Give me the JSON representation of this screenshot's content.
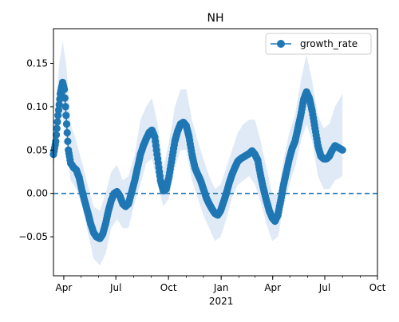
{
  "chart_data": {
    "type": "line",
    "title": "NH",
    "xlabel": "",
    "ylabel": "",
    "x_range": [
      "2020-03-14",
      "2021-10-01"
    ],
    "ylim": [
      -0.095,
      0.19
    ],
    "grid": false,
    "legend_placement": "top-right",
    "y_ticks": [
      -0.05,
      0.0,
      0.05,
      0.1,
      0.15
    ],
    "y_tick_labels": [
      "−0.05",
      "0.00",
      "0.05",
      "0.10",
      "0.15"
    ],
    "x_ticks": [
      {
        "date": "2020-04-01",
        "label": "Apr",
        "sub": ""
      },
      {
        "date": "2020-07-01",
        "label": "Jul",
        "sub": ""
      },
      {
        "date": "2020-10-01",
        "label": "Oct",
        "sub": ""
      },
      {
        "date": "2021-01-01",
        "label": "Jan",
        "sub": "2021"
      },
      {
        "date": "2021-04-01",
        "label": "Apr",
        "sub": ""
      },
      {
        "date": "2021-07-01",
        "label": "Jul",
        "sub": ""
      },
      {
        "date": "2021-10-01",
        "label": "Oct",
        "sub": ""
      }
    ],
    "reference_line": {
      "y": 0.0,
      "style": "dashed"
    },
    "colors": {
      "series": "#1f77b4",
      "band": "#dce8f5"
    },
    "series": [
      {
        "name": "growth_rate",
        "points": [
          [
            "2020-03-14",
            0.045
          ],
          [
            "2020-03-18",
            0.06
          ],
          [
            "2020-03-22",
            0.09
          ],
          [
            "2020-03-26",
            0.115
          ],
          [
            "2020-03-30",
            0.128
          ],
          [
            "2020-04-02",
            0.12
          ],
          [
            "2020-04-05",
            0.09
          ],
          [
            "2020-04-09",
            0.05
          ],
          [
            "2020-04-13",
            0.035
          ],
          [
            "2020-04-18",
            0.03
          ],
          [
            "2020-04-23",
            0.027
          ],
          [
            "2020-04-28",
            0.018
          ],
          [
            "2020-05-03",
            0.003
          ],
          [
            "2020-05-08",
            -0.01
          ],
          [
            "2020-05-13",
            -0.022
          ],
          [
            "2020-05-18",
            -0.035
          ],
          [
            "2020-05-23",
            -0.045
          ],
          [
            "2020-05-28",
            -0.05
          ],
          [
            "2020-06-03",
            -0.052
          ],
          [
            "2020-06-08",
            -0.047
          ],
          [
            "2020-06-13",
            -0.035
          ],
          [
            "2020-06-18",
            -0.02
          ],
          [
            "2020-06-23",
            -0.008
          ],
          [
            "2020-06-28",
            0.0
          ],
          [
            "2020-07-03",
            0.002
          ],
          [
            "2020-07-08",
            -0.003
          ],
          [
            "2020-07-13",
            -0.012
          ],
          [
            "2020-07-18",
            -0.015
          ],
          [
            "2020-07-23",
            -0.012
          ],
          [
            "2020-07-28",
            0.0
          ],
          [
            "2020-08-03",
            0.015
          ],
          [
            "2020-08-08",
            0.03
          ],
          [
            "2020-08-13",
            0.045
          ],
          [
            "2020-08-18",
            0.055
          ],
          [
            "2020-08-23",
            0.063
          ],
          [
            "2020-08-28",
            0.07
          ],
          [
            "2020-09-02",
            0.073
          ],
          [
            "2020-09-07",
            0.065
          ],
          [
            "2020-09-12",
            0.04
          ],
          [
            "2020-09-17",
            0.015
          ],
          [
            "2020-09-22",
            0.003
          ],
          [
            "2020-09-27",
            0.005
          ],
          [
            "2020-10-02",
            0.02
          ],
          [
            "2020-10-07",
            0.04
          ],
          [
            "2020-10-12",
            0.06
          ],
          [
            "2020-10-17",
            0.072
          ],
          [
            "2020-10-22",
            0.08
          ],
          [
            "2020-10-27",
            0.082
          ],
          [
            "2020-11-01",
            0.078
          ],
          [
            "2020-11-06",
            0.065
          ],
          [
            "2020-11-11",
            0.045
          ],
          [
            "2020-11-16",
            0.03
          ],
          [
            "2020-11-21",
            0.022
          ],
          [
            "2020-11-26",
            0.015
          ],
          [
            "2020-12-01",
            0.005
          ],
          [
            "2020-12-06",
            -0.005
          ],
          [
            "2020-12-11",
            -0.012
          ],
          [
            "2020-12-16",
            -0.018
          ],
          [
            "2020-12-21",
            -0.023
          ],
          [
            "2020-12-26",
            -0.025
          ],
          [
            "2020-12-31",
            -0.02
          ],
          [
            "2021-01-05",
            -0.01
          ],
          [
            "2021-01-10",
            0.0
          ],
          [
            "2021-01-15",
            0.012
          ],
          [
            "2021-01-20",
            0.022
          ],
          [
            "2021-01-25",
            0.03
          ],
          [
            "2021-01-30",
            0.037
          ],
          [
            "2021-02-04",
            0.04
          ],
          [
            "2021-02-09",
            0.042
          ],
          [
            "2021-02-14",
            0.044
          ],
          [
            "2021-02-19",
            0.046
          ],
          [
            "2021-02-24",
            0.049
          ],
          [
            "2021-03-01",
            0.045
          ],
          [
            "2021-03-06",
            0.038
          ],
          [
            "2021-03-11",
            0.02
          ],
          [
            "2021-03-16",
            0.005
          ],
          [
            "2021-03-21",
            -0.008
          ],
          [
            "2021-03-26",
            -0.02
          ],
          [
            "2021-03-31",
            -0.028
          ],
          [
            "2021-04-05",
            -0.032
          ],
          [
            "2021-04-10",
            -0.025
          ],
          [
            "2021-04-15",
            -0.008
          ],
          [
            "2021-04-20",
            0.01
          ],
          [
            "2021-04-25",
            0.025
          ],
          [
            "2021-04-30",
            0.04
          ],
          [
            "2021-05-05",
            0.052
          ],
          [
            "2021-05-10",
            0.06
          ],
          [
            "2021-05-15",
            0.075
          ],
          [
            "2021-05-20",
            0.09
          ],
          [
            "2021-05-25",
            0.108
          ],
          [
            "2021-05-30",
            0.117
          ],
          [
            "2021-06-04",
            0.11
          ],
          [
            "2021-06-09",
            0.095
          ],
          [
            "2021-06-14",
            0.075
          ],
          [
            "2021-06-19",
            0.055
          ],
          [
            "2021-06-24",
            0.043
          ],
          [
            "2021-06-29",
            0.04
          ],
          [
            "2021-07-04",
            0.04
          ],
          [
            "2021-07-09",
            0.043
          ],
          [
            "2021-07-14",
            0.05
          ],
          [
            "2021-07-19",
            0.055
          ],
          [
            "2021-08-01",
            0.05
          ]
        ]
      }
    ],
    "band": {
      "label": "",
      "lower_offset": [
        -0.01,
        -0.015,
        -0.03,
        -0.03,
        -0.03,
        -0.03,
        -0.03
      ],
      "points": [
        [
          "2020-03-14",
          0.03,
          0.065
        ],
        [
          "2020-03-24",
          0.08,
          0.15
        ],
        [
          "2020-03-30",
          0.09,
          0.175
        ],
        [
          "2020-04-05",
          0.06,
          0.15
        ],
        [
          "2020-04-13",
          0.015,
          0.08
        ],
        [
          "2020-04-23",
          0.005,
          0.06
        ],
        [
          "2020-05-03",
          -0.015,
          0.035
        ],
        [
          "2020-05-13",
          -0.045,
          0.01
        ],
        [
          "2020-05-23",
          -0.075,
          -0.015
        ],
        [
          "2020-06-03",
          -0.083,
          -0.02
        ],
        [
          "2020-06-13",
          -0.07,
          0.0
        ],
        [
          "2020-06-23",
          -0.04,
          0.025
        ],
        [
          "2020-07-03",
          -0.03,
          0.033
        ],
        [
          "2020-07-13",
          -0.04,
          0.015
        ],
        [
          "2020-07-23",
          -0.04,
          0.02
        ],
        [
          "2020-08-03",
          -0.01,
          0.045
        ],
        [
          "2020-08-13",
          0.01,
          0.085
        ],
        [
          "2020-08-23",
          0.035,
          0.1
        ],
        [
          "2020-09-02",
          0.04,
          0.11
        ],
        [
          "2020-09-12",
          0.01,
          0.08
        ],
        [
          "2020-09-22",
          -0.015,
          0.03
        ],
        [
          "2020-10-02",
          -0.005,
          0.06
        ],
        [
          "2020-10-12",
          0.03,
          0.1
        ],
        [
          "2020-10-22",
          0.05,
          0.12
        ],
        [
          "2020-11-01",
          0.05,
          0.12
        ],
        [
          "2020-11-11",
          0.015,
          0.085
        ],
        [
          "2020-11-21",
          -0.005,
          0.06
        ],
        [
          "2020-12-01",
          -0.025,
          0.04
        ],
        [
          "2020-12-11",
          -0.04,
          0.02
        ],
        [
          "2020-12-21",
          -0.055,
          0.005
        ],
        [
          "2020-12-31",
          -0.05,
          0.01
        ],
        [
          "2021-01-10",
          -0.03,
          0.03
        ],
        [
          "2021-01-20",
          -0.005,
          0.05
        ],
        [
          "2021-01-30",
          0.01,
          0.07
        ],
        [
          "2021-02-09",
          0.015,
          0.08
        ],
        [
          "2021-02-19",
          0.02,
          0.085
        ],
        [
          "2021-03-01",
          0.01,
          0.085
        ],
        [
          "2021-03-11",
          -0.01,
          0.06
        ],
        [
          "2021-03-21",
          -0.035,
          0.03
        ],
        [
          "2021-03-31",
          -0.055,
          0.0
        ],
        [
          "2021-04-10",
          -0.05,
          0.0
        ],
        [
          "2021-04-20",
          -0.015,
          0.04
        ],
        [
          "2021-04-30",
          0.01,
          0.07
        ],
        [
          "2021-05-10",
          0.03,
          0.09
        ],
        [
          "2021-05-20",
          0.06,
          0.13
        ],
        [
          "2021-05-30",
          0.08,
          0.16
        ],
        [
          "2021-06-09",
          0.06,
          0.13
        ],
        [
          "2021-06-19",
          0.02,
          0.09
        ],
        [
          "2021-06-29",
          0.005,
          0.075
        ],
        [
          "2021-07-09",
          0.005,
          0.08
        ],
        [
          "2021-07-19",
          0.015,
          0.1
        ],
        [
          "2021-08-01",
          0.02,
          0.115
        ]
      ]
    }
  }
}
